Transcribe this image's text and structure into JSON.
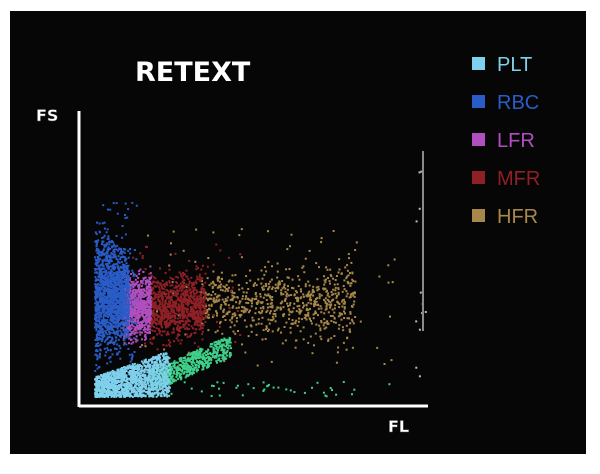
{
  "chart_data": {
    "type": "scatter",
    "title": "RETEXT",
    "xlabel": "FL",
    "ylabel": "FS",
    "grid": false,
    "legend_position": "top-right",
    "series": [
      {
        "name": "PLT",
        "color": "#7fd0ec"
      },
      {
        "name": "RBC",
        "color": "#2a5cc8"
      },
      {
        "name": "LFR",
        "color": "#b04fbf"
      },
      {
        "name": "MFR",
        "color": "#8f2026"
      },
      {
        "name": "HFR",
        "color": "#a8884a"
      }
    ]
  },
  "colors": {
    "background": "#060606",
    "axis": "#ffffff",
    "green_cells": "#3fd08a",
    "marker_line": "#8a8a8a"
  }
}
